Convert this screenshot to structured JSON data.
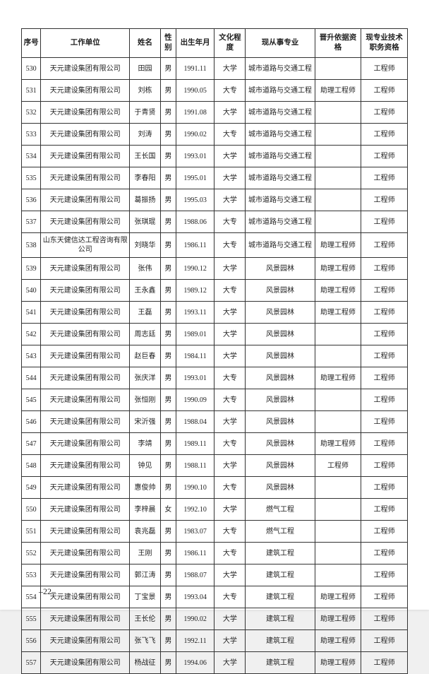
{
  "table": {
    "headers": {
      "seq": "序号",
      "unit": "工作单位",
      "name": "姓名",
      "sex": "性别",
      "birth": "出生年月",
      "edu": "文化程度",
      "major": "现从事专业",
      "basis": "晋升依据资格",
      "qual": "现专业技术职务资格"
    },
    "rows": [
      {
        "seq": "530",
        "unit": "天元建设集团有限公司",
        "name": "田园",
        "sex": "男",
        "birth": "1991.11",
        "edu": "大学",
        "major": "城市道路与交通工程",
        "basis": "",
        "qual": "工程师"
      },
      {
        "seq": "531",
        "unit": "天元建设集团有限公司",
        "name": "刘栋",
        "sex": "男",
        "birth": "1990.05",
        "edu": "大专",
        "major": "城市道路与交通工程",
        "basis": "助理工程师",
        "qual": "工程师"
      },
      {
        "seq": "532",
        "unit": "天元建设集团有限公司",
        "name": "于青贤",
        "sex": "男",
        "birth": "1991.08",
        "edu": "大学",
        "major": "城市道路与交通工程",
        "basis": "",
        "qual": "工程师"
      },
      {
        "seq": "533",
        "unit": "天元建设集团有限公司",
        "name": "刘涛",
        "sex": "男",
        "birth": "1990.02",
        "edu": "大专",
        "major": "城市道路与交通工程",
        "basis": "",
        "qual": "工程师"
      },
      {
        "seq": "534",
        "unit": "天元建设集团有限公司",
        "name": "王长国",
        "sex": "男",
        "birth": "1993.01",
        "edu": "大学",
        "major": "城市道路与交通工程",
        "basis": "",
        "qual": "工程师"
      },
      {
        "seq": "535",
        "unit": "天元建设集团有限公司",
        "name": "李春阳",
        "sex": "男",
        "birth": "1995.01",
        "edu": "大学",
        "major": "城市道路与交通工程",
        "basis": "",
        "qual": "工程师"
      },
      {
        "seq": "536",
        "unit": "天元建设集团有限公司",
        "name": "葛振扬",
        "sex": "男",
        "birth": "1995.03",
        "edu": "大学",
        "major": "城市道路与交通工程",
        "basis": "",
        "qual": "工程师"
      },
      {
        "seq": "537",
        "unit": "天元建设集团有限公司",
        "name": "张琪琨",
        "sex": "男",
        "birth": "1988.06",
        "edu": "大专",
        "major": "城市道路与交通工程",
        "basis": "",
        "qual": "工程师"
      },
      {
        "seq": "538",
        "unit": "山东天健信达工程咨询有限公司",
        "name": "刘晓华",
        "sex": "男",
        "birth": "1986.11",
        "edu": "大专",
        "major": "城市道路与交通工程",
        "basis": "助理工程师",
        "qual": "工程师"
      },
      {
        "seq": "539",
        "unit": "天元建设集团有限公司",
        "name": "张伟",
        "sex": "男",
        "birth": "1990.12",
        "edu": "大学",
        "major": "风景园林",
        "basis": "助理工程师",
        "qual": "工程师"
      },
      {
        "seq": "540",
        "unit": "天元建设集团有限公司",
        "name": "王永鑫",
        "sex": "男",
        "birth": "1989.12",
        "edu": "大专",
        "major": "风景园林",
        "basis": "助理工程师",
        "qual": "工程师"
      },
      {
        "seq": "541",
        "unit": "天元建设集团有限公司",
        "name": "王磊",
        "sex": "男",
        "birth": "1993.11",
        "edu": "大学",
        "major": "风景园林",
        "basis": "助理工程师",
        "qual": "工程师"
      },
      {
        "seq": "542",
        "unit": "天元建设集团有限公司",
        "name": "周志廷",
        "sex": "男",
        "birth": "1989.01",
        "edu": "大学",
        "major": "风景园林",
        "basis": "",
        "qual": "工程师"
      },
      {
        "seq": "543",
        "unit": "天元建设集团有限公司",
        "name": "赵巨春",
        "sex": "男",
        "birth": "1984.11",
        "edu": "大学",
        "major": "风景园林",
        "basis": "",
        "qual": "工程师"
      },
      {
        "seq": "544",
        "unit": "天元建设集团有限公司",
        "name": "张庆洋",
        "sex": "男",
        "birth": "1993.01",
        "edu": "大专",
        "major": "风景园林",
        "basis": "助理工程师",
        "qual": "工程师"
      },
      {
        "seq": "545",
        "unit": "天元建设集团有限公司",
        "name": "张恒刚",
        "sex": "男",
        "birth": "1990.09",
        "edu": "大专",
        "major": "风景园林",
        "basis": "",
        "qual": "工程师"
      },
      {
        "seq": "546",
        "unit": "天元建设集团有限公司",
        "name": "宋沂强",
        "sex": "男",
        "birth": "1988.04",
        "edu": "大学",
        "major": "风景园林",
        "basis": "",
        "qual": "工程师"
      },
      {
        "seq": "547",
        "unit": "天元建设集团有限公司",
        "name": "李靖",
        "sex": "男",
        "birth": "1989.11",
        "edu": "大专",
        "major": "风景园林",
        "basis": "助理工程师",
        "qual": "工程师"
      },
      {
        "seq": "548",
        "unit": "天元建设集团有限公司",
        "name": "钟见",
        "sex": "男",
        "birth": "1988.11",
        "edu": "大学",
        "major": "风景园林",
        "basis": "工程师",
        "qual": "工程师"
      },
      {
        "seq": "549",
        "unit": "天元建设集团有限公司",
        "name": "惠俊帅",
        "sex": "男",
        "birth": "1990.10",
        "edu": "大专",
        "major": "风景园林",
        "basis": "",
        "qual": "工程师"
      },
      {
        "seq": "550",
        "unit": "天元建设集团有限公司",
        "name": "李梓晨",
        "sex": "女",
        "birth": "1992.10",
        "edu": "大学",
        "major": "燃气工程",
        "basis": "",
        "qual": "工程师"
      },
      {
        "seq": "551",
        "unit": "天元建设集团有限公司",
        "name": "袁兆磊",
        "sex": "男",
        "birth": "1983.07",
        "edu": "大专",
        "major": "燃气工程",
        "basis": "",
        "qual": "工程师"
      },
      {
        "seq": "552",
        "unit": "天元建设集团有限公司",
        "name": "王刚",
        "sex": "男",
        "birth": "1986.11",
        "edu": "大专",
        "major": "建筑工程",
        "basis": "",
        "qual": "工程师"
      },
      {
        "seq": "553",
        "unit": "天元建设集团有限公司",
        "name": "郭江涛",
        "sex": "男",
        "birth": "1988.07",
        "edu": "大学",
        "major": "建筑工程",
        "basis": "",
        "qual": "工程师"
      },
      {
        "seq": "554",
        "unit": "天元建设集团有限公司",
        "name": "丁宝景",
        "sex": "男",
        "birth": "1993.04",
        "edu": "大专",
        "major": "建筑工程",
        "basis": "助理工程师",
        "qual": "工程师"
      },
      {
        "seq": "555",
        "unit": "天元建设集团有限公司",
        "name": "王长伦",
        "sex": "男",
        "birth": "1990.02",
        "edu": "大学",
        "major": "建筑工程",
        "basis": "助理工程师",
        "qual": "工程师"
      },
      {
        "seq": "556",
        "unit": "天元建设集团有限公司",
        "name": "张飞飞",
        "sex": "男",
        "birth": "1992.11",
        "edu": "大学",
        "major": "建筑工程",
        "basis": "助理工程师",
        "qual": "工程师"
      },
      {
        "seq": "557",
        "unit": "天元建设集团有限公司",
        "name": "杨战征",
        "sex": "男",
        "birth": "1994.06",
        "edu": "大学",
        "major": "建筑工程",
        "basis": "助理工程师",
        "qual": "工程师"
      }
    ]
  },
  "page_number": "–22–"
}
